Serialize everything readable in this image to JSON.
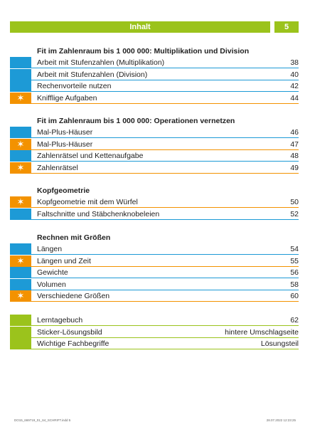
{
  "header": {
    "title": "Inhalt",
    "page": "5"
  },
  "sections": [
    {
      "title": "Fit im Zahlenraum bis 1 000 000: Multiplikation und Division",
      "entries": [
        {
          "label": "Arbeit mit Stufenzahlen (Multiplikation)",
          "page": "38",
          "color": "#1d9ad6",
          "star": false
        },
        {
          "label": "Arbeit mit Stufenzahlen (Division)",
          "page": "40",
          "color": "#1d9ad6",
          "star": false
        },
        {
          "label": "Rechenvorteile nutzen",
          "page": "42",
          "color": "#1d9ad6",
          "star": false
        },
        {
          "label": "Knifflige Aufgaben",
          "page": "44",
          "color": "#f39200",
          "star": true
        }
      ]
    },
    {
      "title": "Fit im Zahlenraum bis 1 000 000: Operationen vernetzen",
      "entries": [
        {
          "label": "Mal-Plus-Häuser",
          "page": "46",
          "color": "#1d9ad6",
          "star": false
        },
        {
          "label": "Mal-Plus-Häuser",
          "page": "47",
          "color": "#f39200",
          "star": true
        },
        {
          "label": "Zahlenrätsel und Kettenaufgabe",
          "page": "48",
          "color": "#1d9ad6",
          "star": false
        },
        {
          "label": "Zahlenrätsel",
          "page": "49",
          "color": "#f39200",
          "star": true
        }
      ]
    },
    {
      "title": "Kopfgeometrie",
      "entries": [
        {
          "label": "Kopfgeometrie mit dem Würfel",
          "page": "50",
          "color": "#f39200",
          "star": true
        },
        {
          "label": "Faltschnitte und Stäbchenknobeleien",
          "page": "52",
          "color": "#1d9ad6",
          "star": false
        }
      ]
    },
    {
      "title": "Rechnen mit Größen",
      "entries": [
        {
          "label": "Längen",
          "page": "54",
          "color": "#1d9ad6",
          "star": false
        },
        {
          "label": "Längen und Zeit",
          "page": "55",
          "color": "#f39200",
          "star": true
        },
        {
          "label": "Gewichte",
          "page": "56",
          "color": "#1d9ad6",
          "star": false
        },
        {
          "label": "Volumen",
          "page": "58",
          "color": "#1d9ad6",
          "star": false
        },
        {
          "label": "Verschiedene Größen",
          "page": "60",
          "color": "#f39200",
          "star": true
        }
      ]
    },
    {
      "entries": [
        {
          "label": "Lerntagebuch",
          "page": "62",
          "color": "#9bc31c",
          "star": false
        },
        {
          "label": "Sticker-Lösungsbild",
          "page": "hintere Umschlagseite",
          "color": "#9bc31c",
          "star": false
        },
        {
          "label": "Wichtige Fachbegriffe",
          "page": "Lösungsteil",
          "color": "#9bc31c",
          "star": false
        }
      ]
    }
  ],
  "footer": {
    "left": "DO15_669719_01_64_SCHRIFT.indd 5",
    "right": "28.07.2022 12:23:25"
  }
}
